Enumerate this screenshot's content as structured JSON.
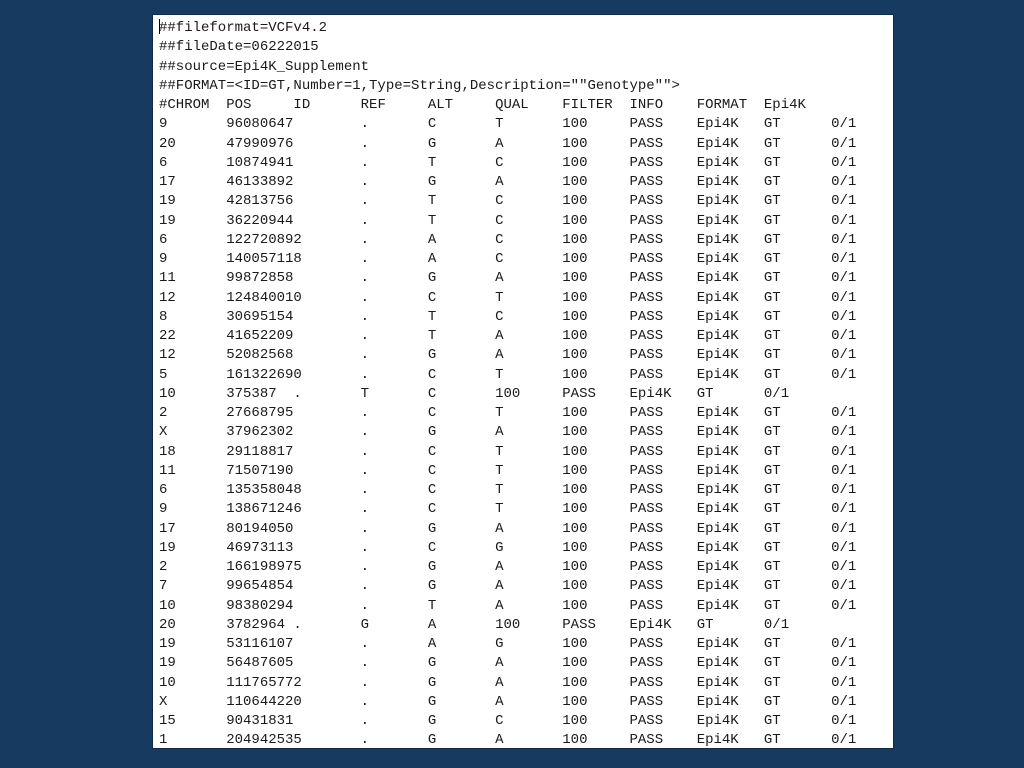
{
  "meta_lines": [
    "##fileformat=VCFv4.2",
    "##fileDate=06222015",
    "##source=Epi4K_Supplement",
    "##FORMAT=<ID=GT,Number=1,Type=String,Description=\"\"Genotype\"\">"
  ],
  "header": [
    "#CHROM",
    "POS",
    "ID",
    "REF",
    "ALT",
    "QUAL",
    "FILTER",
    "INFO",
    "FORMAT",
    "Epi4K"
  ],
  "rows": [
    [
      "9",
      "96080647",
      ".",
      "C",
      "T",
      "100",
      "PASS",
      "Epi4K",
      "GT",
      "0/1"
    ],
    [
      "20",
      "47990976",
      ".",
      "G",
      "A",
      "100",
      "PASS",
      "Epi4K",
      "GT",
      "0/1"
    ],
    [
      "6",
      "10874941",
      ".",
      "T",
      "C",
      "100",
      "PASS",
      "Epi4K",
      "GT",
      "0/1"
    ],
    [
      "17",
      "46133892",
      ".",
      "G",
      "A",
      "100",
      "PASS",
      "Epi4K",
      "GT",
      "0/1"
    ],
    [
      "19",
      "42813756",
      ".",
      "T",
      "C",
      "100",
      "PASS",
      "Epi4K",
      "GT",
      "0/1"
    ],
    [
      "19",
      "36220944",
      ".",
      "T",
      "C",
      "100",
      "PASS",
      "Epi4K",
      "GT",
      "0/1"
    ],
    [
      "6",
      "122720892",
      ".",
      "A",
      "C",
      "100",
      "PASS",
      "Epi4K",
      "GT",
      "0/1"
    ],
    [
      "9",
      "140057118",
      ".",
      "A",
      "C",
      "100",
      "PASS",
      "Epi4K",
      "GT",
      "0/1"
    ],
    [
      "11",
      "99872858",
      ".",
      "G",
      "A",
      "100",
      "PASS",
      "Epi4K",
      "GT",
      "0/1"
    ],
    [
      "12",
      "124840010",
      ".",
      "C",
      "T",
      "100",
      "PASS",
      "Epi4K",
      "GT",
      "0/1"
    ],
    [
      "8",
      "30695154",
      ".",
      "T",
      "C",
      "100",
      "PASS",
      "Epi4K",
      "GT",
      "0/1"
    ],
    [
      "22",
      "41652209",
      ".",
      "T",
      "A",
      "100",
      "PASS",
      "Epi4K",
      "GT",
      "0/1"
    ],
    [
      "12",
      "52082568",
      ".",
      "G",
      "A",
      "100",
      "PASS",
      "Epi4K",
      "GT",
      "0/1"
    ],
    [
      "5",
      "161322690",
      ".",
      "C",
      "T",
      "100",
      "PASS",
      "Epi4K",
      "GT",
      "0/1"
    ],
    [
      "10",
      "375387",
      ".",
      "T",
      "C",
      "100",
      "PASS",
      "Epi4K",
      "GT",
      "0/1"
    ],
    [
      "2",
      "27668795",
      ".",
      "C",
      "T",
      "100",
      "PASS",
      "Epi4K",
      "GT",
      "0/1"
    ],
    [
      "X",
      "37962302",
      ".",
      "G",
      "A",
      "100",
      "PASS",
      "Epi4K",
      "GT",
      "0/1"
    ],
    [
      "18",
      "29118817",
      ".",
      "C",
      "T",
      "100",
      "PASS",
      "Epi4K",
      "GT",
      "0/1"
    ],
    [
      "11",
      "71507190",
      ".",
      "C",
      "T",
      "100",
      "PASS",
      "Epi4K",
      "GT",
      "0/1"
    ],
    [
      "6",
      "135358048",
      ".",
      "C",
      "T",
      "100",
      "PASS",
      "Epi4K",
      "GT",
      "0/1"
    ],
    [
      "9",
      "138671246",
      ".",
      "C",
      "T",
      "100",
      "PASS",
      "Epi4K",
      "GT",
      "0/1"
    ],
    [
      "17",
      "80194050",
      ".",
      "G",
      "A",
      "100",
      "PASS",
      "Epi4K",
      "GT",
      "0/1"
    ],
    [
      "19",
      "46973113",
      ".",
      "C",
      "G",
      "100",
      "PASS",
      "Epi4K",
      "GT",
      "0/1"
    ],
    [
      "2",
      "166198975",
      ".",
      "G",
      "A",
      "100",
      "PASS",
      "Epi4K",
      "GT",
      "0/1"
    ],
    [
      "7",
      "99654854",
      ".",
      "G",
      "A",
      "100",
      "PASS",
      "Epi4K",
      "GT",
      "0/1"
    ],
    [
      "10",
      "98380294",
      ".",
      "T",
      "A",
      "100",
      "PASS",
      "Epi4K",
      "GT",
      "0/1"
    ],
    [
      "20",
      "3782964",
      ".",
      "G",
      "A",
      "100",
      "PASS",
      "Epi4K",
      "GT",
      "0/1"
    ],
    [
      "19",
      "53116107",
      ".",
      "A",
      "G",
      "100",
      "PASS",
      "Epi4K",
      "GT",
      "0/1"
    ],
    [
      "19",
      "56487605",
      ".",
      "G",
      "A",
      "100",
      "PASS",
      "Epi4K",
      "GT",
      "0/1"
    ],
    [
      "10",
      "111765772",
      ".",
      "G",
      "A",
      "100",
      "PASS",
      "Epi4K",
      "GT",
      "0/1"
    ],
    [
      "X",
      "110644220",
      ".",
      "G",
      "A",
      "100",
      "PASS",
      "Epi4K",
      "GT",
      "0/1"
    ],
    [
      "15",
      "90431831",
      ".",
      "G",
      "C",
      "100",
      "PASS",
      "Epi4K",
      "GT",
      "0/1"
    ],
    [
      "1",
      "204942535",
      ".",
      "G",
      "A",
      "100",
      "PASS",
      "Epi4K",
      "GT",
      "0/1"
    ]
  ],
  "colors": {
    "background": "#173a60",
    "panel": "#ffffff",
    "text": "#1a1a1a"
  }
}
